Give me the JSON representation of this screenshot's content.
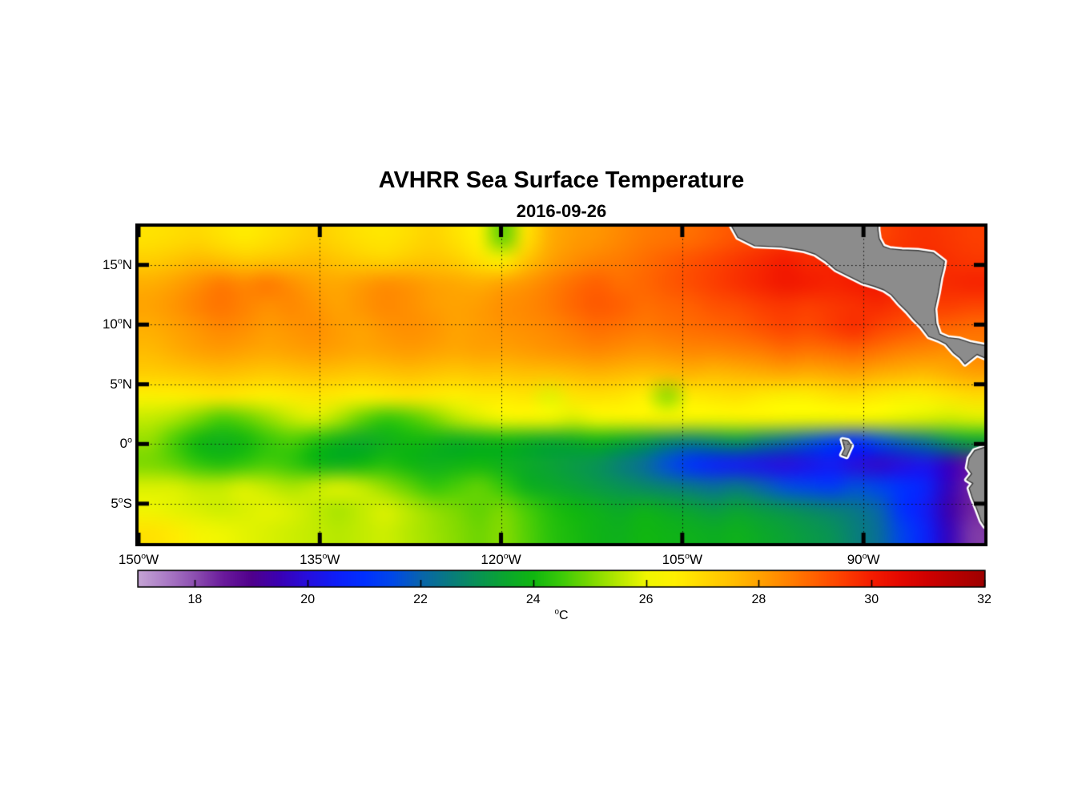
{
  "figure": {
    "title": "AVHRR Sea Surface Temperature",
    "date": "2016-09-26"
  },
  "axes": {
    "x_ticks": [
      {
        "value": -150,
        "num": "150",
        "deg": "o",
        "hemi": "W"
      },
      {
        "value": -135,
        "num": "135",
        "deg": "o",
        "hemi": "W"
      },
      {
        "value": -120,
        "num": "120",
        "deg": "o",
        "hemi": "W"
      },
      {
        "value": -105,
        "num": "105",
        "deg": "o",
        "hemi": "W"
      },
      {
        "value": -90,
        "num": "90",
        "deg": "o",
        "hemi": "W"
      }
    ],
    "y_ticks": [
      {
        "value": 15,
        "num": "15",
        "deg": "o",
        "hemi": "N"
      },
      {
        "value": 10,
        "num": "10",
        "deg": "o",
        "hemi": "N"
      },
      {
        "value": 5,
        "num": "5",
        "deg": "o",
        "hemi": "N"
      },
      {
        "value": 0,
        "num": "0",
        "deg": "o",
        "hemi": ""
      },
      {
        "value": -5,
        "num": "5",
        "deg": "o",
        "hemi": "S"
      }
    ],
    "grid_lats": [
      15,
      10,
      5,
      0,
      -5
    ],
    "grid_lons": [
      -135,
      -120,
      -105,
      -90
    ]
  },
  "colorbar": {
    "min": 17,
    "max": 32,
    "ticks": [
      18,
      20,
      22,
      24,
      26,
      28,
      30,
      32
    ],
    "unit_degree": "o",
    "unit_letter": "C"
  },
  "chart_data": {
    "type": "heatmap",
    "title": "AVHRR Sea Surface Temperature",
    "date": "2016-09-26",
    "units": "degC",
    "lon_range": [
      -150,
      -80
    ],
    "lat_range": [
      -8.3,
      18.2
    ],
    "value_range": [
      17,
      32
    ],
    "land_color": "#8c8c8c",
    "coast_halo_color": "#ffffff",
    "coast_line_color": "#3c3c3c",
    "lon": [
      -150,
      -148,
      -146,
      -144,
      -142,
      -140,
      -138,
      -136,
      -134,
      -132,
      -130,
      -128,
      -126,
      -124,
      -122,
      -120,
      -118,
      -116,
      -114,
      -112,
      -110,
      -108,
      -106,
      -104,
      -102,
      -100,
      -98,
      -96,
      -94,
      -92,
      -90,
      -88,
      -86,
      -84,
      -82,
      -80
    ],
    "lat": [
      18.2,
      16.2,
      14.2,
      12.2,
      10.2,
      8.2,
      6.2,
      4.2,
      2.2,
      0.2,
      -1.8,
      -3.8,
      -5.8,
      -7.8
    ],
    "sst": [
      [
        26.8,
        26.9,
        27.0,
        26.8,
        26.6,
        26.8,
        27.0,
        27.2,
        27.0,
        26.8,
        26.7,
        26.9,
        27.1,
        26.8,
        26.4,
        24.8,
        26.8,
        27.8,
        28.1,
        28.2,
        28.4,
        28.6,
        28.7,
        28.8,
        29.0,
        29.2,
        29.4,
        29.5,
        29.6,
        29.6,
        29.5,
        29.4,
        29.6,
        29.7,
        29.6,
        29.5
      ],
      [
        27.2,
        27.4,
        27.6,
        27.5,
        27.3,
        27.4,
        27.5,
        27.6,
        27.4,
        27.2,
        27.1,
        27.3,
        27.4,
        27.2,
        26.8,
        26.5,
        27.4,
        28.0,
        28.3,
        28.5,
        28.6,
        28.8,
        29.0,
        29.2,
        29.4,
        29.6,
        29.8,
        30.0,
        29.8,
        29.9,
        30.0,
        29.8,
        29.7,
        29.8,
        29.7,
        29.6
      ],
      [
        27.8,
        28.0,
        28.3,
        28.6,
        28.4,
        28.6,
        28.3,
        28.0,
        27.9,
        28.1,
        28.3,
        28.2,
        28.0,
        27.9,
        27.8,
        28.0,
        28.2,
        28.5,
        28.8,
        29.0,
        28.8,
        28.9,
        29.1,
        29.3,
        29.5,
        29.7,
        29.9,
        30.1,
        30.0,
        29.9,
        30.0,
        30.1,
        29.9,
        29.8,
        29.8,
        29.9
      ],
      [
        28.0,
        28.2,
        28.5,
        28.7,
        28.5,
        28.3,
        28.4,
        28.2,
        28.0,
        28.2,
        28.4,
        28.3,
        28.1,
        28.0,
        28.1,
        28.3,
        28.4,
        28.6,
        28.9,
        29.1,
        29.0,
        28.8,
        28.9,
        29.0,
        29.2,
        29.3,
        29.5,
        29.6,
        29.5,
        29.6,
        29.7,
        29.8,
        29.6,
        29.5,
        29.5,
        29.4
      ],
      [
        27.8,
        28.0,
        28.2,
        28.4,
        28.3,
        28.1,
        28.2,
        28.3,
        28.1,
        28.0,
        28.2,
        28.3,
        28.2,
        28.0,
        28.1,
        28.2,
        28.3,
        28.4,
        28.6,
        28.8,
        28.7,
        28.6,
        28.7,
        28.8,
        28.9,
        29.0,
        29.2,
        29.4,
        29.3,
        29.5,
        29.7,
        29.4,
        29.2,
        29.0,
        28.9,
        28.8
      ],
      [
        27.6,
        27.8,
        28.0,
        28.1,
        28.0,
        27.9,
        28.0,
        28.1,
        28.0,
        27.9,
        28.0,
        28.1,
        28.0,
        27.9,
        28.0,
        28.0,
        28.1,
        28.2,
        28.3,
        28.4,
        28.3,
        28.2,
        28.3,
        28.4,
        28.4,
        28.5,
        28.6,
        28.8,
        28.7,
        28.8,
        28.9,
        28.7,
        28.5,
        28.4,
        28.3,
        28.5
      ],
      [
        27.2,
        27.3,
        27.4,
        27.5,
        27.4,
        27.3,
        27.4,
        27.5,
        27.4,
        27.3,
        27.4,
        27.5,
        27.4,
        27.3,
        27.4,
        27.4,
        27.5,
        27.5,
        27.6,
        27.7,
        27.6,
        27.5,
        27.6,
        27.7,
        27.6,
        27.7,
        27.8,
        27.9,
        27.8,
        27.9,
        28.0,
        27.8,
        27.7,
        27.6,
        27.8,
        28.0
      ],
      [
        26.4,
        26.5,
        26.6,
        26.7,
        26.6,
        26.5,
        26.6,
        26.7,
        26.6,
        26.5,
        26.6,
        26.7,
        26.6,
        26.5,
        26.6,
        26.6,
        26.7,
        25.9,
        26.7,
        26.8,
        26.7,
        26.5,
        25.2,
        26.6,
        26.7,
        26.8,
        26.6,
        26.4,
        26.5,
        26.7,
        26.8,
        26.6,
        26.4,
        26.5,
        26.7,
        26.9
      ],
      [
        25.6,
        25.4,
        25.0,
        24.6,
        24.8,
        25.2,
        25.6,
        25.8,
        25.4,
        24.8,
        24.4,
        24.6,
        25.0,
        25.5,
        25.8,
        26.0,
        26.1,
        26.0,
        25.8,
        26.0,
        26.1,
        26.2,
        26.2,
        26.1,
        26.0,
        26.1,
        26.2,
        26.1,
        26.0,
        26.0,
        26.1,
        26.0,
        25.9,
        25.8,
        25.7,
        25.8
      ],
      [
        25.2,
        24.6,
        24.0,
        23.8,
        24.0,
        24.4,
        24.6,
        24.2,
        23.8,
        23.6,
        23.8,
        24.0,
        23.9,
        23.7,
        23.8,
        23.9,
        23.7,
        23.5,
        23.6,
        23.8,
        23.5,
        23.2,
        22.8,
        22.6,
        22.8,
        23.0,
        22.6,
        22.2,
        21.8,
        21.4,
        21.0,
        21.6,
        22.0,
        22.4,
        23.0,
        23.4
      ],
      [
        25.0,
        24.8,
        24.4,
        24.2,
        24.4,
        24.6,
        24.4,
        24.0,
        23.8,
        24.0,
        24.2,
        24.0,
        23.8,
        23.9,
        24.0,
        23.8,
        23.6,
        23.4,
        23.2,
        23.0,
        22.6,
        22.2,
        21.6,
        21.0,
        20.6,
        20.4,
        20.2,
        20.0,
        20.2,
        20.4,
        20.0,
        19.8,
        20.0,
        20.2,
        19.6,
        18.6
      ],
      [
        25.8,
        25.8,
        25.6,
        25.6,
        25.8,
        25.6,
        25.4,
        25.6,
        25.8,
        25.6,
        25.2,
        24.8,
        24.4,
        24.6,
        24.8,
        24.4,
        23.8,
        23.6,
        23.4,
        23.2,
        23.0,
        22.8,
        22.6,
        22.4,
        22.2,
        22.4,
        22.0,
        21.6,
        21.4,
        21.2,
        21.6,
        21.4,
        21.0,
        20.6,
        19.6,
        18.4
      ],
      [
        26.0,
        25.9,
        25.8,
        25.7,
        25.8,
        25.9,
        25.8,
        25.6,
        25.4,
        25.6,
        25.8,
        25.5,
        25.2,
        25.0,
        24.8,
        25.0,
        24.6,
        24.2,
        24.0,
        23.8,
        23.6,
        23.8,
        23.6,
        23.4,
        23.2,
        23.4,
        23.2,
        23.0,
        22.8,
        22.6,
        22.4,
        22.0,
        21.0,
        20.4,
        19.4,
        18.4
      ],
      [
        26.8,
        26.6,
        26.2,
        26.0,
        25.9,
        25.8,
        25.7,
        25.6,
        25.5,
        25.6,
        25.7,
        25.5,
        25.3,
        25.1,
        24.9,
        25.1,
        24.7,
        24.3,
        24.1,
        23.9,
        23.8,
        24.0,
        23.9,
        23.8,
        23.7,
        23.8,
        23.6,
        23.4,
        23.2,
        23.0,
        22.6,
        22.2,
        21.4,
        20.6,
        19.6,
        18.2
      ]
    ],
    "colormap_stops": [
      [
        17.0,
        196,
        163,
        212
      ],
      [
        17.5,
        170,
        122,
        197
      ],
      [
        18.0,
        140,
        78,
        176
      ],
      [
        18.5,
        106,
        26,
        155
      ],
      [
        19.0,
        80,
        0,
        140
      ],
      [
        19.5,
        58,
        0,
        180
      ],
      [
        20.0,
        38,
        14,
        222
      ],
      [
        20.5,
        14,
        30,
        248
      ],
      [
        21.0,
        0,
        48,
        255
      ],
      [
        21.5,
        0,
        72,
        232
      ],
      [
        22.0,
        8,
        100,
        172
      ],
      [
        22.5,
        8,
        122,
        128
      ],
      [
        23.0,
        8,
        146,
        86
      ],
      [
        23.5,
        10,
        166,
        46
      ],
      [
        24.0,
        16,
        182,
        16
      ],
      [
        24.5,
        60,
        202,
        8
      ],
      [
        25.0,
        122,
        216,
        0
      ],
      [
        25.5,
        182,
        232,
        0
      ],
      [
        26.0,
        240,
        246,
        0
      ],
      [
        26.5,
        255,
        240,
        0
      ],
      [
        27.0,
        255,
        216,
        0
      ],
      [
        27.5,
        255,
        192,
        0
      ],
      [
        28.0,
        255,
        162,
        0
      ],
      [
        28.5,
        255,
        130,
        0
      ],
      [
        29.0,
        255,
        96,
        0
      ],
      [
        29.5,
        252,
        62,
        0
      ],
      [
        30.0,
        244,
        28,
        0
      ],
      [
        30.5,
        228,
        8,
        0
      ],
      [
        31.0,
        206,
        0,
        0
      ],
      [
        31.5,
        182,
        0,
        0
      ],
      [
        32.0,
        158,
        0,
        0
      ]
    ],
    "land_polygons": [
      {
        "name": "central-america",
        "points": [
          [
            -101.6,
            19.5
          ],
          [
            -100.4,
            17.3
          ],
          [
            -99.0,
            16.6
          ],
          [
            -96.8,
            16.5
          ],
          [
            -94.9,
            16.2
          ],
          [
            -94.0,
            15.9
          ],
          [
            -93.1,
            15.3
          ],
          [
            -92.3,
            14.6
          ],
          [
            -91.1,
            14.0
          ],
          [
            -90.1,
            13.5
          ],
          [
            -89.1,
            13.2
          ],
          [
            -88.3,
            12.9
          ],
          [
            -87.7,
            12.5
          ],
          [
            -87.1,
            11.8
          ],
          [
            -86.4,
            11.1
          ],
          [
            -85.8,
            10.4
          ],
          [
            -85.2,
            9.8
          ],
          [
            -84.6,
            9.0
          ],
          [
            -83.8,
            8.7
          ],
          [
            -83.2,
            8.4
          ],
          [
            -82.5,
            7.6
          ],
          [
            -82.0,
            7.2
          ],
          [
            -81.6,
            6.7
          ],
          [
            -81.1,
            7.1
          ],
          [
            -80.6,
            7.5
          ],
          [
            -79.7,
            7.1
          ],
          [
            -79.7,
            8.2
          ],
          [
            -81.2,
            8.5
          ],
          [
            -82.1,
            8.8
          ],
          [
            -83.0,
            8.9
          ],
          [
            -83.7,
            9.2
          ],
          [
            -84.0,
            10.1
          ],
          [
            -84.1,
            11.3
          ],
          [
            -83.8,
            12.7
          ],
          [
            -83.6,
            13.9
          ],
          [
            -83.4,
            14.7
          ],
          [
            -83.3,
            15.3
          ],
          [
            -84.2,
            16.0
          ],
          [
            -85.5,
            16.2
          ],
          [
            -86.8,
            16.25
          ],
          [
            -87.8,
            16.35
          ],
          [
            -88.35,
            16.55
          ],
          [
            -88.7,
            17.2
          ],
          [
            -88.8,
            17.9
          ],
          [
            -88.85,
            19.5
          ]
        ]
      },
      {
        "name": "south-america",
        "points": [
          [
            -79.2,
            -0.05
          ],
          [
            -80.05,
            -0.3
          ],
          [
            -80.8,
            -0.55
          ],
          [
            -81.25,
            -1.2
          ],
          [
            -81.4,
            -2.0
          ],
          [
            -81.05,
            -2.5
          ],
          [
            -81.45,
            -3.0
          ],
          [
            -80.95,
            -3.3
          ],
          [
            -81.25,
            -3.7
          ],
          [
            -81.0,
            -4.5
          ],
          [
            -80.6,
            -5.5
          ],
          [
            -80.25,
            -6.45
          ],
          [
            -79.95,
            -6.9
          ],
          [
            -79.2,
            -7.3
          ]
        ]
      },
      {
        "name": "galapagos-islands",
        "points": [
          [
            -91.75,
            0.35
          ],
          [
            -91.3,
            0.28
          ],
          [
            -91.0,
            -0.15
          ],
          [
            -91.25,
            -0.7
          ],
          [
            -91.4,
            -1.05
          ],
          [
            -91.8,
            -0.9
          ],
          [
            -91.55,
            -0.4
          ]
        ]
      }
    ]
  }
}
